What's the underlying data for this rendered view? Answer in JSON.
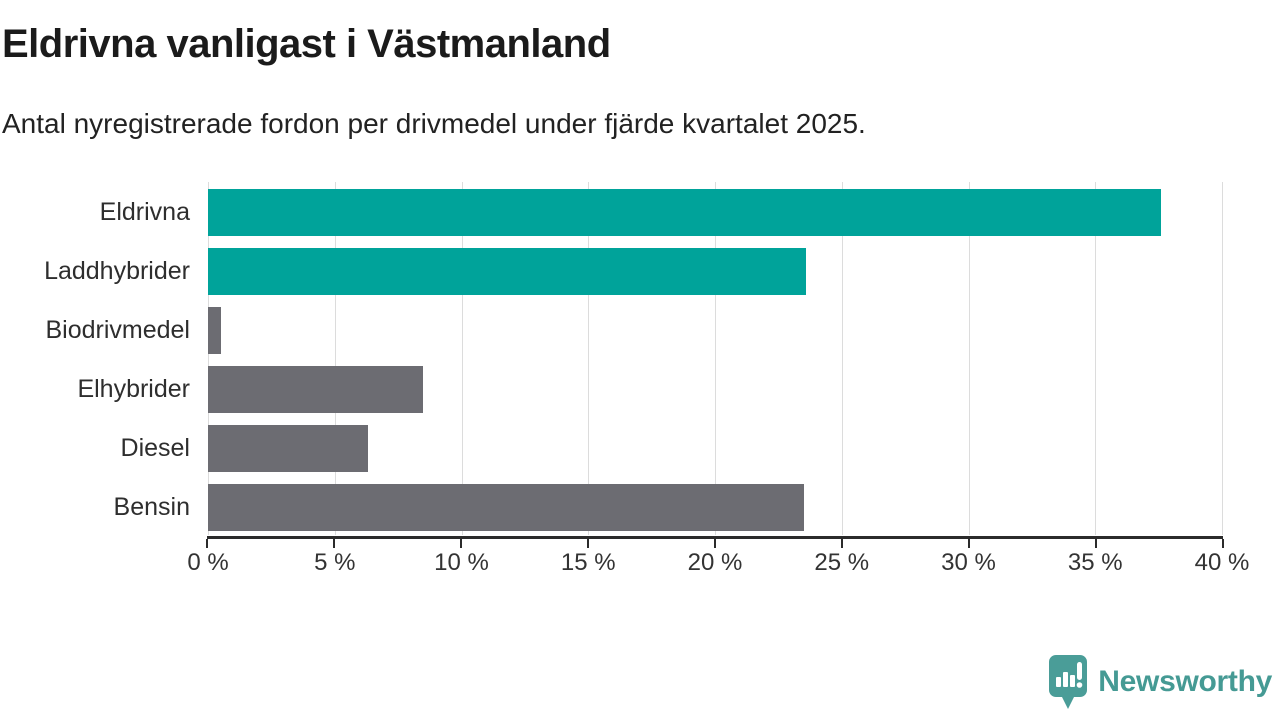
{
  "header": {
    "title": "Eldrivna vanligast i Västmanland",
    "subtitle": "Antal nyregistrerade fordon per drivmedel under fjärde kvartalet 2025."
  },
  "chart_data": {
    "type": "bar",
    "orientation": "horizontal",
    "title": "Eldrivna vanligast i Västmanland",
    "subtitle": "Antal nyregistrerade fordon per drivmedel under fjärde kvartalet 2025.",
    "categories": [
      "Eldrivna",
      "Laddhybrider",
      "Biodrivmedel",
      "Elhybrider",
      "Diesel",
      "Bensin"
    ],
    "values": [
      37.6,
      23.6,
      0.5,
      8.5,
      6.3,
      23.5
    ],
    "unit": "%",
    "bar_colors": [
      "#00a39a",
      "#00a39a",
      "#6c6c72",
      "#6c6c72",
      "#6c6c72",
      "#6c6c72"
    ],
    "highlight_color": "#00a39a",
    "default_color": "#6c6c72",
    "xlim": [
      0,
      40
    ],
    "x_tick_values": [
      0,
      5,
      10,
      15,
      20,
      25,
      30,
      35,
      40
    ],
    "x_tick_labels": [
      "0 %",
      "5 %",
      "10 %",
      "15 %",
      "20 %",
      "25 %",
      "30 %",
      "35 %",
      "40 %"
    ],
    "grid": true,
    "gridline_color": "#dcdcdc",
    "axis_color": "#2b2b2b",
    "legend": "none"
  },
  "footer": {
    "brand": "Newsworthy",
    "brand_color": "#459a94",
    "logo_icon": "bar-chart-speech-bubble-icon"
  }
}
